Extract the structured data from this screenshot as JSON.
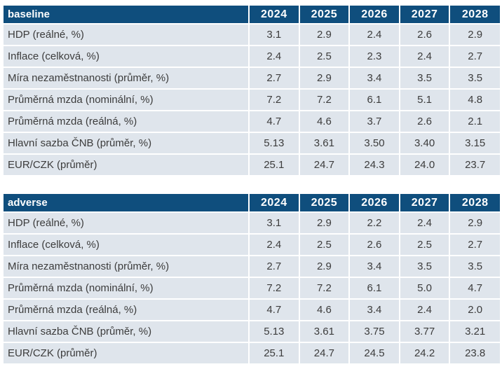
{
  "chart_data": [
    {
      "type": "table",
      "title": "baseline",
      "columns": [
        "2024",
        "2025",
        "2026",
        "2027",
        "2028"
      ],
      "rows": [
        {
          "label": "HDP (reálné, %)",
          "values": [
            "3.1",
            "2.9",
            "2.4",
            "2.6",
            "2.9"
          ]
        },
        {
          "label": "Inflace (celková, %)",
          "values": [
            "2.4",
            "2.5",
            "2.3",
            "2.4",
            "2.7"
          ]
        },
        {
          "label": "Míra nezaměstnanosti (průměr, %)",
          "values": [
            "2.7",
            "2.9",
            "3.4",
            "3.5",
            "3.5"
          ]
        },
        {
          "label": "Průměrná mzda (nominální, %)",
          "values": [
            "7.2",
            "7.2",
            "6.1",
            "5.1",
            "4.8"
          ]
        },
        {
          "label": "Průměrná mzda (reálná, %)",
          "values": [
            "4.7",
            "4.6",
            "3.7",
            "2.6",
            "2.1"
          ]
        },
        {
          "label": "Hlavní sazba ČNB (průměr, %)",
          "values": [
            "5.13",
            "3.61",
            "3.50",
            "3.40",
            "3.15"
          ]
        },
        {
          "label": "EUR/CZK (průměr)",
          "values": [
            "25.1",
            "24.7",
            "24.3",
            "24.0",
            "23.7"
          ]
        }
      ]
    },
    {
      "type": "table",
      "title": "adverse",
      "columns": [
        "2024",
        "2025",
        "2026",
        "2027",
        "2028"
      ],
      "rows": [
        {
          "label": "HDP (reálné, %)",
          "values": [
            "3.1",
            "2.9",
            "2.2",
            "2.4",
            "2.9"
          ]
        },
        {
          "label": "Inflace (celková, %)",
          "values": [
            "2.4",
            "2.5",
            "2.6",
            "2.5",
            "2.7"
          ]
        },
        {
          "label": "Míra nezaměstnanosti (průměr, %)",
          "values": [
            "2.7",
            "2.9",
            "3.4",
            "3.5",
            "3.5"
          ]
        },
        {
          "label": "Průměrná mzda (nominální, %)",
          "values": [
            "7.2",
            "7.2",
            "6.1",
            "5.0",
            "4.7"
          ]
        },
        {
          "label": "Průměrná mzda (reálná, %)",
          "values": [
            "4.7",
            "4.6",
            "3.4",
            "2.4",
            "2.0"
          ]
        },
        {
          "label": "Hlavní sazba ČNB (průměr, %)",
          "values": [
            "5.13",
            "3.61",
            "3.75",
            "3.77",
            "3.21"
          ]
        },
        {
          "label": "EUR/CZK (průměr)",
          "values": [
            "25.1",
            "24.7",
            "24.5",
            "24.2",
            "23.8"
          ]
        }
      ]
    }
  ],
  "colors": {
    "header_bg": "#0f4e7d",
    "header_text": "#ffffff",
    "row_bg": "#dfe5ec",
    "body_text": "#3c3c3c",
    "separator": "#ffffff"
  }
}
